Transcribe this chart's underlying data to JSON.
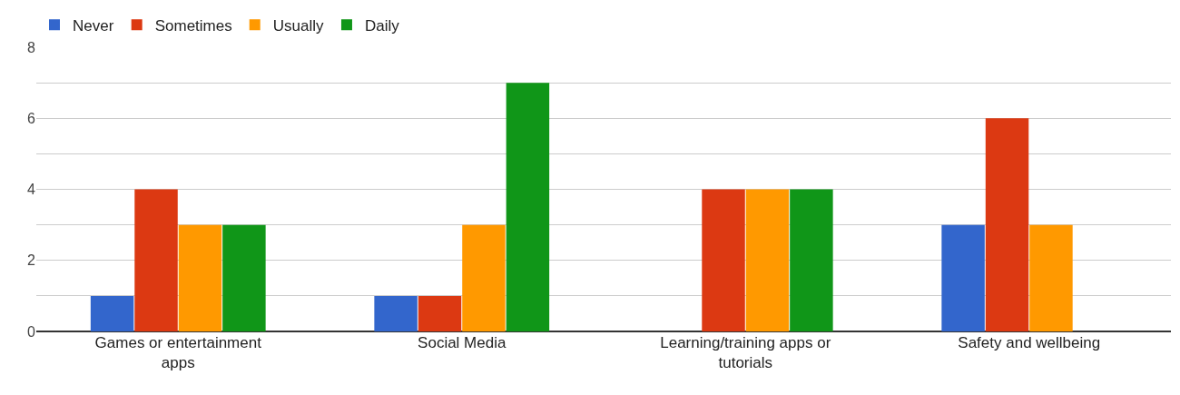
{
  "chart_data": {
    "type": "bar",
    "categories": [
      "Games or entertainment apps",
      "Social Media",
      "Learning/training apps or tutorials",
      "Safety and wellbeing"
    ],
    "series": [
      {
        "name": "Never",
        "color": "#3366cc",
        "values": [
          1,
          1,
          0,
          3
        ]
      },
      {
        "name": "Sometimes",
        "color": "#dc3912",
        "values": [
          4,
          1,
          4,
          6
        ]
      },
      {
        "name": "Usually",
        "color": "#ff9900",
        "values": [
          3,
          3,
          4,
          3
        ]
      },
      {
        "name": "Daily",
        "color": "#109618",
        "values": [
          3,
          7,
          4,
          0
        ]
      }
    ],
    "ylim": [
      0,
      8
    ],
    "yticks": [
      0,
      {
        "value": 1,
        "label": null
      },
      2,
      {
        "value": 3,
        "label": null
      },
      4,
      {
        "value": 5,
        "label": null
      },
      6,
      {
        "value": 7,
        "label": null
      },
      8
    ],
    "grid": true,
    "legend": "top left"
  }
}
